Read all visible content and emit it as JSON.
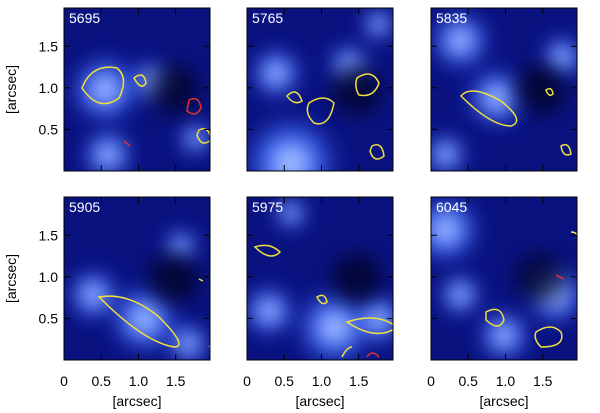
{
  "panels": [
    {
      "label": "5695"
    },
    {
      "label": "5765"
    },
    {
      "label": "5835"
    },
    {
      "label": "5905"
    },
    {
      "label": "5975"
    },
    {
      "label": "6045"
    }
  ],
  "x_axis": {
    "label": "[arcsec]",
    "lim": [
      0,
      1.96
    ],
    "ticks": [
      0,
      {
        "value": 0.5,
        "label": "0.5"
      },
      {
        "value": 1,
        "label": "1.0"
      },
      {
        "value": 1.5,
        "label": "1.5"
      }
    ]
  },
  "y_axis": {
    "label": "[arcsec]",
    "lim": [
      0,
      1.96
    ],
    "ticks": [
      {
        "value": 0.5,
        "label": "0.5"
      },
      {
        "value": 1,
        "label": "1.0"
      },
      {
        "value": 1.5,
        "label": "1.5"
      }
    ]
  }
}
